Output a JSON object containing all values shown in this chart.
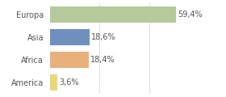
{
  "categories": [
    "Europa",
    "Asia",
    "Africa",
    "America"
  ],
  "values": [
    59.4,
    18.6,
    18.4,
    3.6
  ],
  "labels": [
    "59,4%",
    "18,6%",
    "18,4%",
    "3,6%"
  ],
  "bar_colors": [
    "#b5c99a",
    "#6f8fbf",
    "#e8b07a",
    "#e8d87a"
  ],
  "background_color": "#ffffff",
  "xlim": [
    0,
    70
  ],
  "bar_height": 0.72,
  "label_fontsize": 7,
  "tick_fontsize": 7,
  "grid_lines": [
    23.3,
    46.6
  ],
  "grid_color": "#dddddd",
  "text_color": "#555555"
}
